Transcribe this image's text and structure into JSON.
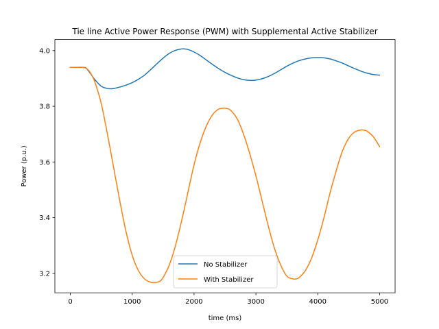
{
  "chart_data": {
    "type": "line",
    "title": "Tie line Active Power Response (PWM) with Supplemental Active Stabilizer",
    "xlabel": "time (ms)",
    "ylabel": "Power (p.u.)",
    "xlim": [
      -250,
      5250
    ],
    "ylim": [
      3.13,
      4.04
    ],
    "xticks": [
      0,
      1000,
      2000,
      3000,
      4000,
      5000
    ],
    "xtick_labels": [
      "0",
      "1000",
      "2000",
      "3000",
      "4000",
      "5000"
    ],
    "yticks": [
      3.2,
      3.4,
      3.6,
      3.8,
      4.0
    ],
    "ytick_labels": [
      "3.2",
      "3.4",
      "3.6",
      "3.8",
      "4.0"
    ],
    "grid": false,
    "legend_position": "lower center",
    "series": [
      {
        "name": "No Stabilizer",
        "color": "#1f77b4",
        "x": [
          0,
          100,
          200,
          250,
          300,
          400,
          500,
          600,
          650,
          700,
          800,
          900,
          1000,
          1100,
          1200,
          1300,
          1400,
          1500,
          1600,
          1700,
          1800,
          1850,
          1900,
          2000,
          2100,
          2200,
          2300,
          2400,
          2500,
          2600,
          2700,
          2800,
          2900,
          3000,
          3100,
          3200,
          3300,
          3400,
          3500,
          3600,
          3700,
          3800,
          3900,
          4000,
          4050,
          4100,
          4200,
          4300,
          4400,
          4500,
          4600,
          4700,
          4800,
          4900,
          5000
        ],
        "values": [
          3.94,
          3.94,
          3.94,
          3.938,
          3.925,
          3.895,
          3.872,
          3.864,
          3.863,
          3.864,
          3.869,
          3.876,
          3.885,
          3.897,
          3.912,
          3.932,
          3.953,
          3.973,
          3.99,
          4.001,
          4.006,
          4.006,
          4.004,
          3.995,
          3.982,
          3.966,
          3.95,
          3.935,
          3.922,
          3.911,
          3.902,
          3.896,
          3.893,
          3.894,
          3.899,
          3.907,
          3.918,
          3.931,
          3.944,
          3.955,
          3.964,
          3.97,
          3.974,
          3.975,
          3.975,
          3.974,
          3.97,
          3.963,
          3.955,
          3.945,
          3.935,
          3.926,
          3.919,
          3.914,
          3.912
        ]
      },
      {
        "name": "With Stabilizer",
        "color": "#ff7f0e",
        "x": [
          0,
          100,
          200,
          250,
          300,
          350,
          400,
          500,
          600,
          700,
          800,
          900,
          1000,
          1100,
          1200,
          1300,
          1400,
          1450,
          1500,
          1600,
          1700,
          1800,
          1900,
          2000,
          2100,
          2200,
          2300,
          2400,
          2500,
          2550,
          2600,
          2700,
          2800,
          2900,
          3000,
          3100,
          3200,
          3300,
          3400,
          3500,
          3600,
          3650,
          3700,
          3800,
          3900,
          4000,
          4100,
          4200,
          4300,
          4400,
          4500,
          4600,
          4700,
          4750,
          4800,
          4900,
          5000
        ],
        "values": [
          3.94,
          3.94,
          3.94,
          3.937,
          3.928,
          3.91,
          3.885,
          3.81,
          3.7,
          3.58,
          3.46,
          3.35,
          3.265,
          3.21,
          3.18,
          3.168,
          3.168,
          3.172,
          3.185,
          3.23,
          3.3,
          3.39,
          3.49,
          3.59,
          3.67,
          3.73,
          3.77,
          3.79,
          3.793,
          3.791,
          3.784,
          3.754,
          3.7,
          3.63,
          3.55,
          3.46,
          3.37,
          3.29,
          3.23,
          3.19,
          3.18,
          3.18,
          3.185,
          3.21,
          3.255,
          3.32,
          3.4,
          3.49,
          3.57,
          3.64,
          3.685,
          3.708,
          3.715,
          3.714,
          3.71,
          3.69,
          3.655
        ]
      }
    ]
  }
}
